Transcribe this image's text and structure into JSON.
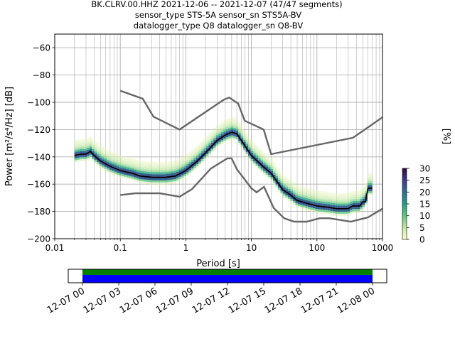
{
  "title_lines": [
    "BK.CLRV.00.HHZ   2021-12-06 -- 2021-12-07  (47/47 segments)",
    "sensor_type STS-5A sensor_sn STS5A-BV",
    "datalogger_type Q8 datalogger_sn Q8-BV"
  ],
  "chart_data": [
    {
      "type": "heatmap",
      "title": "BK.CLRV.00.HHZ   2021-12-06 -- 2021-12-07  (47/47 segments)",
      "subtitle": "sensor_type STS-5A sensor_sn STS5A-BV / datalogger_type Q8 datalogger_sn Q8-BV",
      "xlabel": "Period [s]",
      "ylabel": "Power [m²/s⁴/Hz] [dB]",
      "xscale": "log",
      "xlim": [
        0.01,
        1000
      ],
      "ylim": [
        -200,
        -50
      ],
      "grid": true,
      "xticks": [
        {
          "value": 0.01,
          "label": "0.01"
        },
        {
          "value": 0.1,
          "label": "0.1"
        },
        {
          "value": 1,
          "label": "1"
        },
        {
          "value": 10,
          "label": "10"
        },
        {
          "value": 100,
          "label": "100"
        },
        {
          "value": 1000,
          "label": "1000"
        }
      ],
      "yticks": [
        {
          "value": -60,
          "label": "−60"
        },
        {
          "value": -80,
          "label": "−80"
        },
        {
          "value": -100,
          "label": "−100"
        },
        {
          "value": -120,
          "label": "−120"
        },
        {
          "value": -140,
          "label": "−140"
        },
        {
          "value": -160,
          "label": "−160"
        },
        {
          "value": -180,
          "label": "−180"
        },
        {
          "value": -200,
          "label": "−200"
        }
      ],
      "series": [
        {
          "name": "mean",
          "color": "#000000",
          "points": [
            [
              0.02,
              -139
            ],
            [
              0.025,
              -138
            ],
            [
              0.03,
              -138
            ],
            [
              0.035,
              -136
            ],
            [
              0.04,
              -139
            ],
            [
              0.05,
              -143
            ],
            [
              0.07,
              -147
            ],
            [
              0.1,
              -150
            ],
            [
              0.15,
              -152
            ],
            [
              0.2,
              -154
            ],
            [
              0.3,
              -155
            ],
            [
              0.5,
              -155
            ],
            [
              0.7,
              -154
            ],
            [
              1,
              -150
            ],
            [
              1.5,
              -143
            ],
            [
              2,
              -137
            ],
            [
              3,
              -128
            ],
            [
              4,
              -124
            ],
            [
              5,
              -122
            ],
            [
              6,
              -123
            ],
            [
              8,
              -132
            ],
            [
              10,
              -139
            ],
            [
              15,
              -147
            ],
            [
              20,
              -152
            ],
            [
              30,
              -164
            ],
            [
              40,
              -168
            ],
            [
              50,
              -172
            ],
            [
              70,
              -174
            ],
            [
              100,
              -176
            ],
            [
              150,
              -177
            ],
            [
              200,
              -178
            ],
            [
              300,
              -178
            ],
            [
              350,
              -176
            ],
            [
              400,
              -176
            ],
            [
              450,
              -176
            ],
            [
              500,
              -173
            ],
            [
              550,
              -173
            ],
            [
              600,
              -163
            ],
            [
              700,
              -163
            ]
          ]
        },
        {
          "name": "NHNM",
          "color": "#666666",
          "points": [
            [
              0.1,
              -91.5
            ],
            [
              0.22,
              -97.4
            ],
            [
              0.32,
              -110.5
            ],
            [
              0.8,
              -120
            ],
            [
              3.8,
              -98
            ],
            [
              4.6,
              -96.5
            ],
            [
              6.3,
              -101
            ],
            [
              7.9,
              -113.5
            ],
            [
              15.4,
              -120
            ],
            [
              20,
              -138
            ],
            [
              354.8,
              -126
            ],
            [
              1000,
              -111
            ]
          ]
        },
        {
          "name": "NLNM",
          "color": "#666666",
          "points": [
            [
              0.1,
              -168
            ],
            [
              0.17,
              -166.7
            ],
            [
              0.4,
              -166.7
            ],
            [
              0.8,
              -169.2
            ],
            [
              1.24,
              -163.7
            ],
            [
              2.4,
              -148.6
            ],
            [
              4.3,
              -141.1
            ],
            [
              5,
              -141.1
            ],
            [
              6,
              -149
            ],
            [
              10,
              -163
            ],
            [
              12,
              -166
            ],
            [
              15.6,
              -162
            ],
            [
              21.9,
              -177.5
            ],
            [
              31.6,
              -185
            ],
            [
              45,
              -187.5
            ],
            [
              70,
              -187.5
            ],
            [
              110,
              -185
            ],
            [
              154.5,
              -185
            ],
            [
              328.8,
              -187.5
            ],
            [
              600,
              -184.4
            ],
            [
              1000,
              -178
            ]
          ]
        }
      ]
    },
    {
      "type": "colorbar",
      "label": "[%]",
      "range": [
        0,
        30
      ],
      "ticks": [
        {
          "value": 0,
          "label": "0"
        },
        {
          "value": 5,
          "label": "5"
        },
        {
          "value": 10,
          "label": "10"
        },
        {
          "value": 15,
          "label": "15"
        },
        {
          "value": 20,
          "label": "20"
        },
        {
          "value": 25,
          "label": "25"
        },
        {
          "value": 30,
          "label": "30"
        }
      ],
      "colors": [
        "#ffffcc",
        "#c2e699",
        "#5fc87a",
        "#1f9e89",
        "#2c6e8e",
        "#3e3a8c",
        "#2d0b3a"
      ]
    },
    {
      "type": "timeline",
      "range_hours": [
        0,
        24
      ],
      "ticks": [
        {
          "hour": 0,
          "label": "12-07 00"
        },
        {
          "hour": 3,
          "label": "12-07 03"
        },
        {
          "hour": 6,
          "label": "12-07 06"
        },
        {
          "hour": 9,
          "label": "12-07 09"
        },
        {
          "hour": 12,
          "label": "12-07 12"
        },
        {
          "hour": 15,
          "label": "12-07 15"
        },
        {
          "hour": 18,
          "label": "12-07 18"
        },
        {
          "hour": 21,
          "label": "12-07 21"
        },
        {
          "hour": 24,
          "label": "12-08 00"
        }
      ],
      "bars": [
        {
          "name": "data-available",
          "color": "#008000",
          "from": 0,
          "to": 24
        },
        {
          "name": "psd-used",
          "color": "#0000ff",
          "from": 0,
          "to": 24
        }
      ]
    }
  ]
}
